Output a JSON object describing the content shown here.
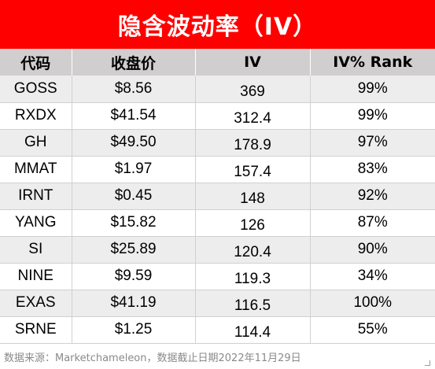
{
  "title": "隐含波动率（IV）",
  "headers": [
    "代码",
    "收盘价",
    "IV",
    "IV% Rank"
  ],
  "rows": [
    {
      "code": "GOSS",
      "close": "$8.56",
      "iv": "369",
      "rank": "99%"
    },
    {
      "code": "RXDX",
      "close": "$41.54",
      "iv": "312.4",
      "rank": "99%"
    },
    {
      "code": "GH",
      "close": "$49.50",
      "iv": "178.9",
      "rank": "97%"
    },
    {
      "code": "MMAT",
      "close": "$1.97",
      "iv": "157.4",
      "rank": "83%"
    },
    {
      "code": "IRNT",
      "close": "$0.45",
      "iv": "148",
      "rank": "92%"
    },
    {
      "code": "YANG",
      "close": "$15.82",
      "iv": "126",
      "rank": "87%"
    },
    {
      "code": "SI",
      "close": "$25.89",
      "iv": "120.4",
      "rank": "90%"
    },
    {
      "code": "NINE",
      "close": "$9.59",
      "iv": "119.3",
      "rank": "34%"
    },
    {
      "code": "EXAS",
      "close": "$41.19",
      "iv": "116.5",
      "rank": "100%"
    },
    {
      "code": "SRNE",
      "close": "$1.25",
      "iv": "114.4",
      "rank": "55%"
    }
  ],
  "footer": "数据来源：Marketchameleon，数据截止日期2022年11月29日",
  "colors": {
    "title_bg": "#ff0000",
    "header_bg": "#d0cece",
    "stripe_bg": "#ededed"
  }
}
